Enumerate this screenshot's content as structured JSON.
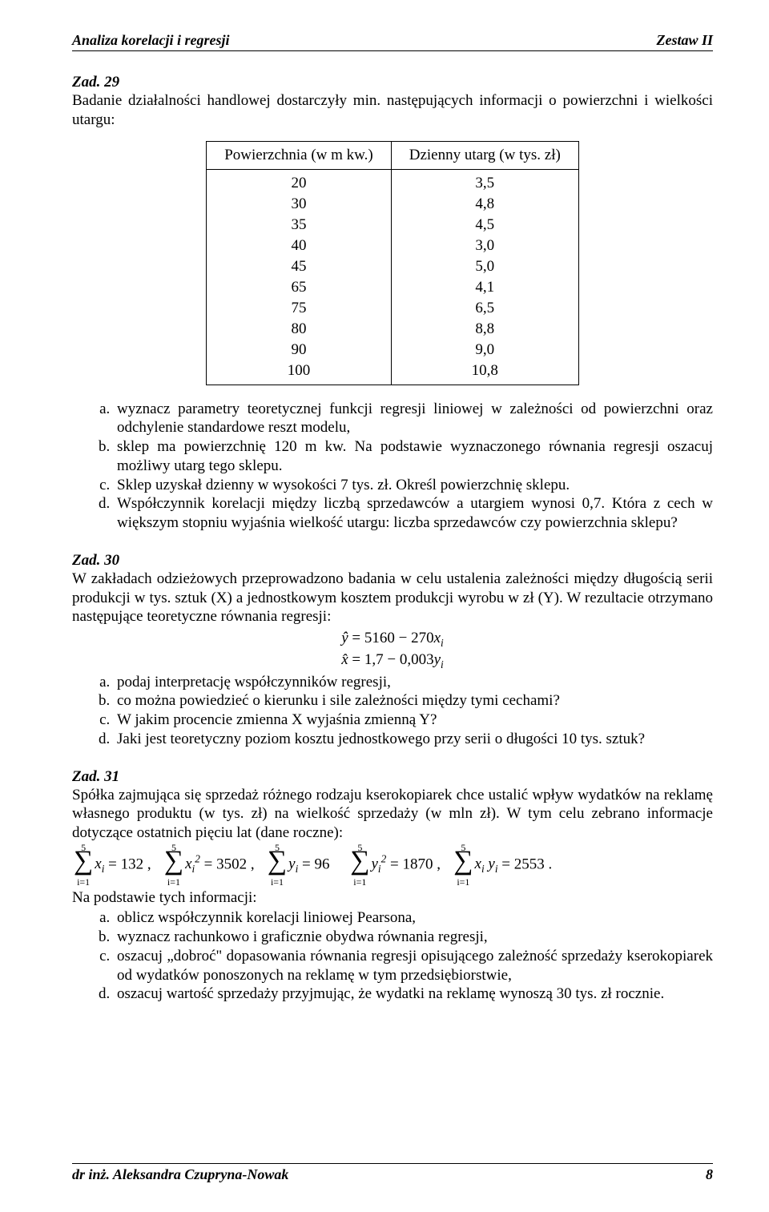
{
  "header": {
    "left": "Analiza korelacji i regresji",
    "right": "Zestaw II"
  },
  "footer": {
    "left": "dr inż. Aleksandra Czupryna-Nowak",
    "page": "8"
  },
  "z29": {
    "title": "Zad. 29",
    "intro": "Badanie działalności handlowej dostarczyły min. następujących informacji o powierzchni i wielkości utargu:",
    "table": {
      "col1": "Powierzchnia (w m kw.)",
      "col2": "Dzienny utarg (w tys. zł)",
      "rows": [
        [
          "20",
          "3,5"
        ],
        [
          "30",
          "4,8"
        ],
        [
          "35",
          "4,5"
        ],
        [
          "40",
          "3,0"
        ],
        [
          "45",
          "5,0"
        ],
        [
          "65",
          "4,1"
        ],
        [
          "75",
          "6,5"
        ],
        [
          "80",
          "8,8"
        ],
        [
          "90",
          "9,0"
        ],
        [
          "100",
          "10,8"
        ]
      ]
    },
    "items": [
      "wyznacz parametry teoretycznej funkcji regresji liniowej w zależności od powierzchni oraz odchylenie standardowe reszt modelu,",
      "sklep ma powierzchnię 120 m kw. Na podstawie wyznaczonego równania regresji oszacuj możliwy utarg tego sklepu.",
      "Sklep uzyskał dzienny w wysokości 7 tys. zł. Określ powierzchnię sklepu.",
      "Współczynnik korelacji między liczbą sprzedawców a utargiem wynosi 0,7. Która z cech w większym stopniu wyjaśnia wielkość utargu: liczba sprzedawców czy powierzchnia sklepu?"
    ]
  },
  "z30": {
    "title": "Zad. 30",
    "intro": "W zakładach odzieżowych przeprowadzono badania w celu ustalenia zależności między długością serii produkcji w tys. sztuk (X) a jednostkowym kosztem produkcji wyrobu w zł (Y). W rezultacie otrzymano następujące teoretyczne równania regresji:",
    "eq1_lhs": "ŷ",
    "eq1_rhs": " = 5160 − 270",
    "eq2_lhs": "x̂",
    "eq2_rhs": " = 1,7 − 0,003",
    "items": [
      "podaj interpretację współczynników regresji,",
      "co można powiedzieć o kierunku i sile zależności między tymi cechami?",
      "W jakim procencie zmienna X wyjaśnia zmienną Y?",
      "Jaki jest teoretyczny poziom kosztu jednostkowego przy serii o długości 10 tys. sztuk?"
    ]
  },
  "z31": {
    "title": "Zad. 31",
    "intro": "Spółka zajmująca się sprzedaż różnego rodzaju kserokopiarek chce ustalić wpływ wydatków na reklamę własnego produktu (w tys. zł) na wielkość sprzedaży (w mln zł). W tym celu zebrano informacje dotyczące ostatnich pięciu lat (dane roczne):",
    "sum_n": "5",
    "sum_idx": "i=1",
    "s1_var": "x",
    "s1_val": " = 132",
    "s2_var": "x",
    "s2_val": " = 3502",
    "s3_var": "y",
    "s3_val": " = 96",
    "s4_var": "y",
    "s4_val": " = 1870",
    "s5_var1": "x",
    "s5_var2": "y",
    "s5_val": " = 2553",
    "post": "Na podstawie tych informacji:",
    "items": [
      "oblicz współczynnik korelacji liniowej Pearsona,",
      "wyznacz rachunkowo i graficznie obydwa równania regresji,",
      "oszacuj „dobroć\" dopasowania równania regresji opisującego zależność sprzedaży kserokopiarek od wydatków ponoszonych na reklamę w tym przedsiębiorstwie,",
      "oszacuj wartość sprzedaży przyjmując, że wydatki na reklamę wynoszą 30 tys. zł rocznie."
    ]
  }
}
